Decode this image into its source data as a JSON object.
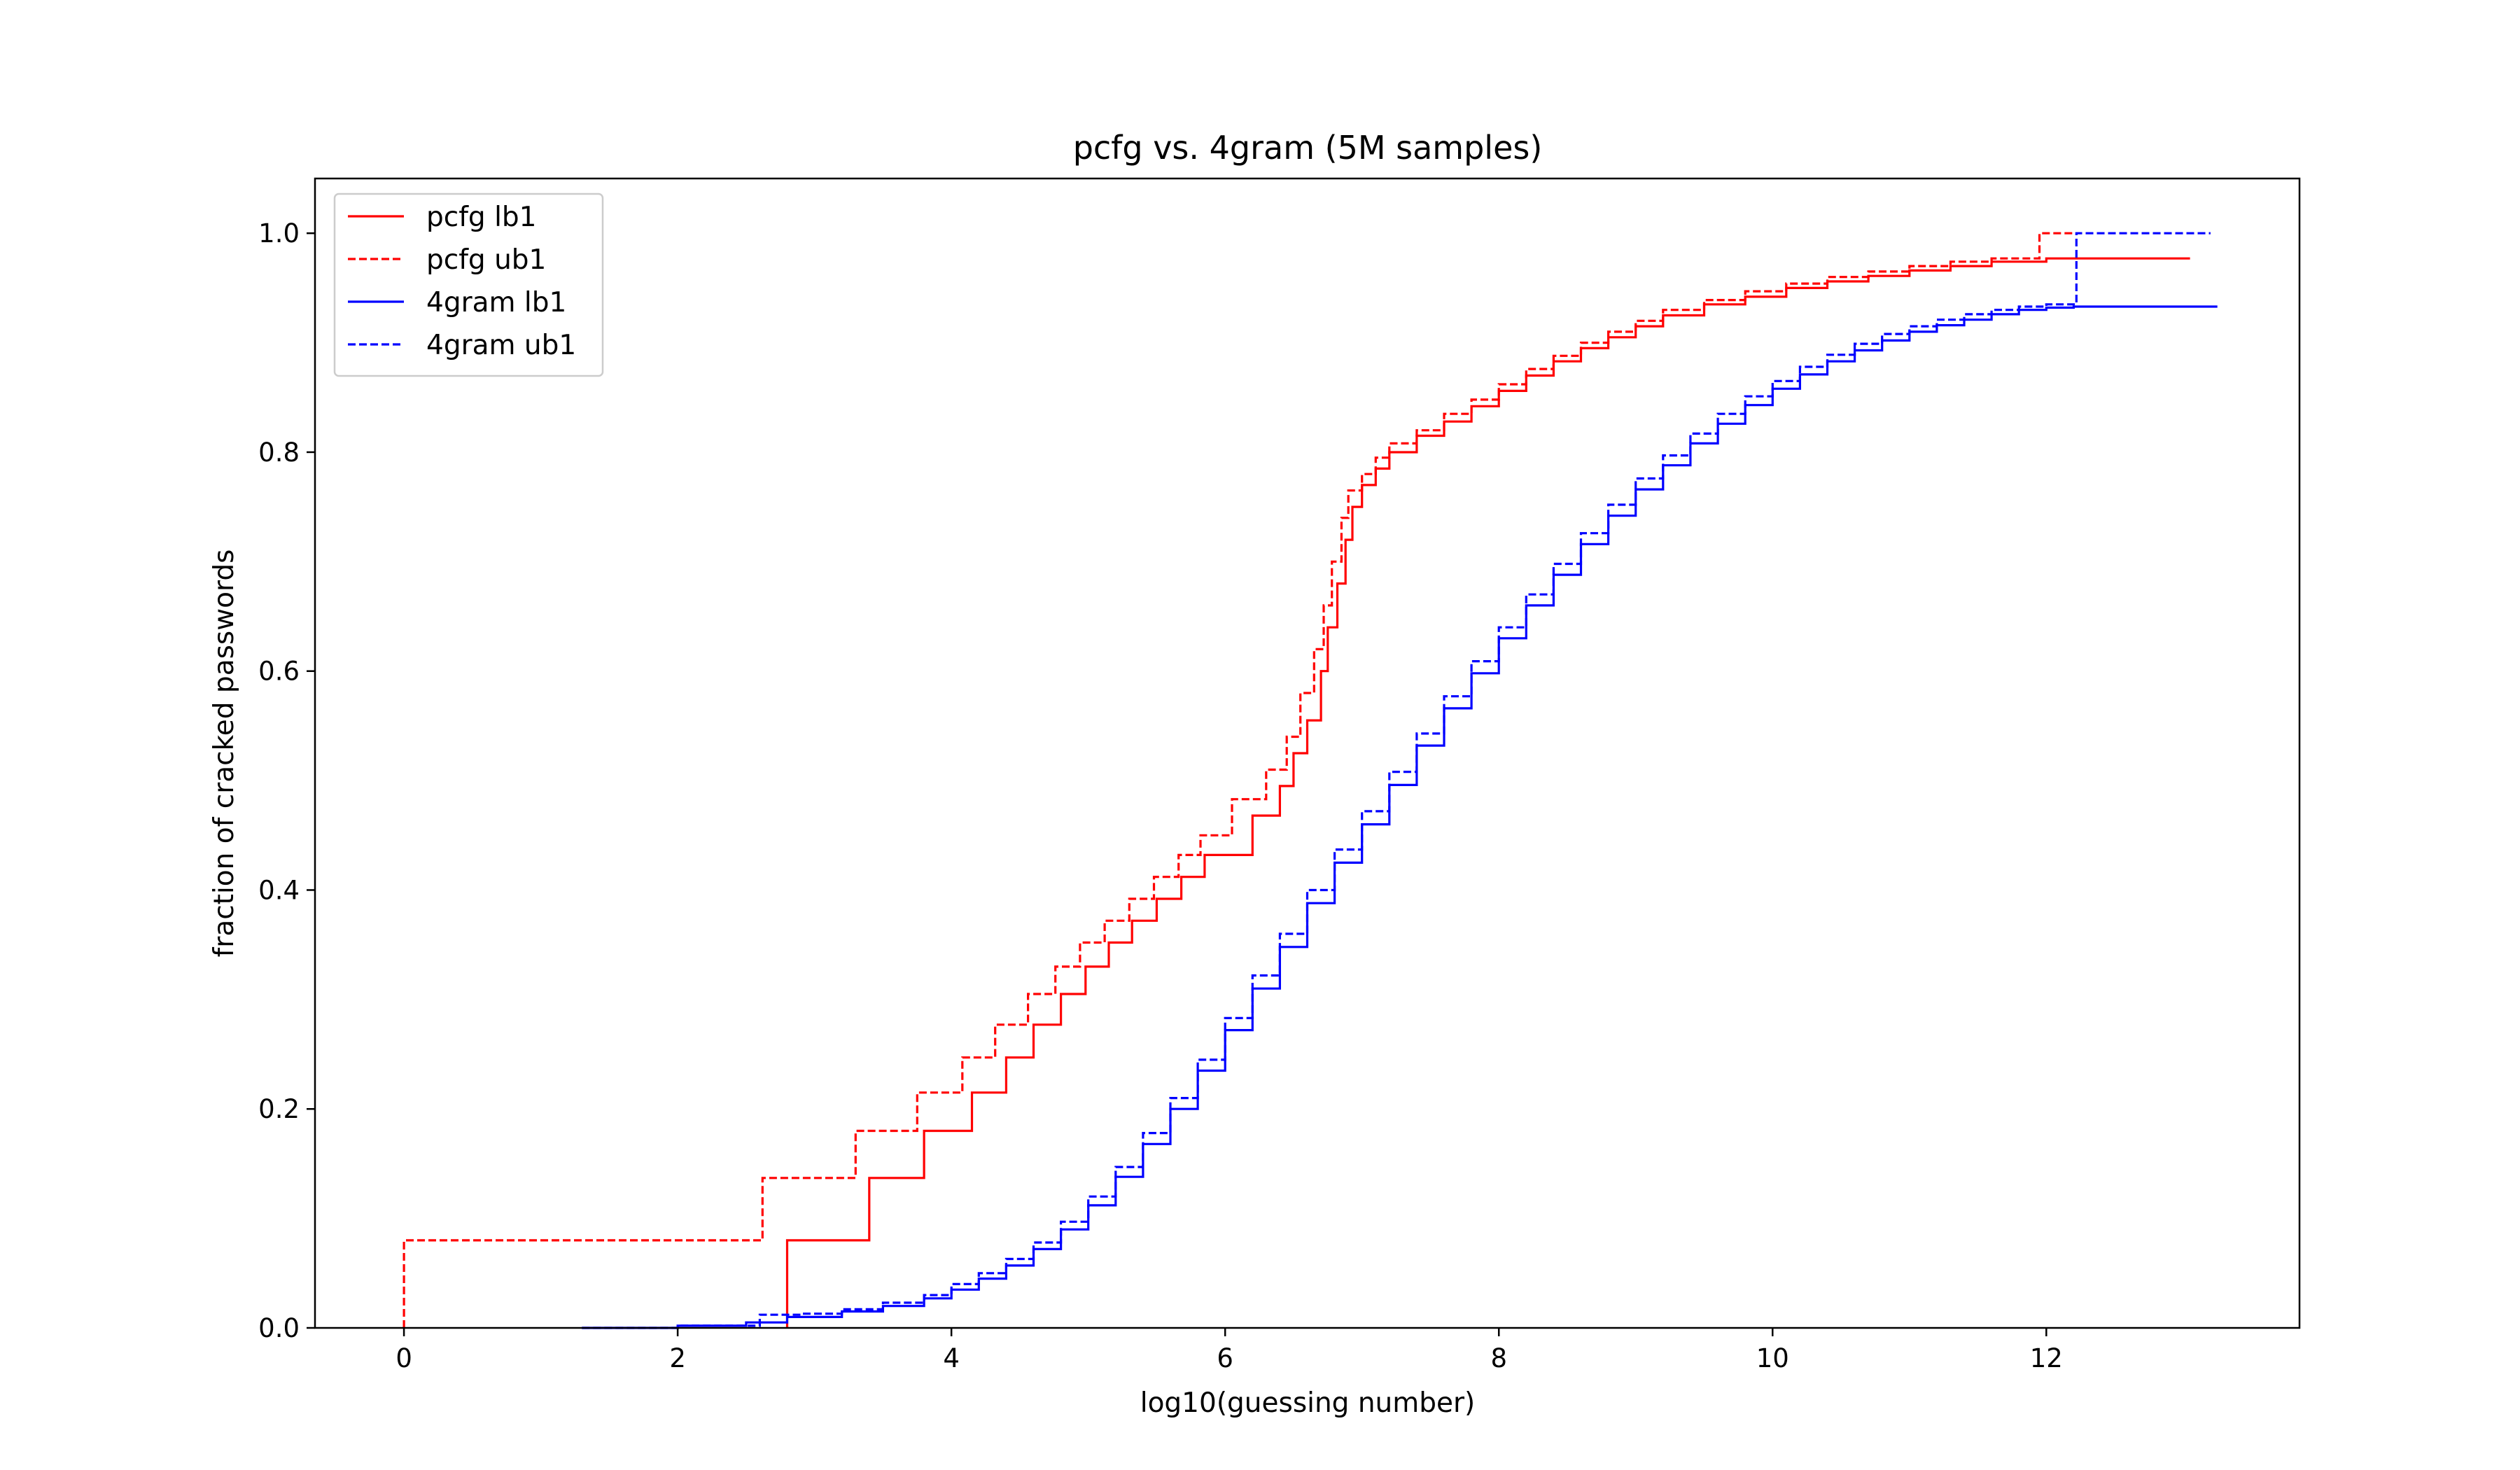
{
  "chart_data": {
    "type": "line",
    "title": "pcfg vs. 4gram (5M samples)",
    "xlabel": "log10(guessing number)",
    "ylabel": "fraction of cracked passwords",
    "xlim": [
      -0.65,
      13.85
    ],
    "ylim": [
      0,
      1.05
    ],
    "x_ticks": [
      0,
      2,
      4,
      6,
      8,
      10,
      12
    ],
    "y_ticks": [
      0.0,
      0.2,
      0.4,
      0.6,
      0.8,
      1.0
    ],
    "x_tick_labels": [
      "0",
      "2",
      "4",
      "6",
      "8",
      "10",
      "12"
    ],
    "y_tick_labels": [
      "0.0",
      "0.2",
      "0.4",
      "0.6",
      "0.8",
      "1.0"
    ],
    "grid": false,
    "legend_position": "top-left",
    "series": [
      {
        "name": "pcfg lb1",
        "color": "#ff0000",
        "style": "solid",
        "step": true,
        "x": [
          2.8,
          3.4,
          3.8,
          4.15,
          4.4,
          4.6,
          4.8,
          4.98,
          5.15,
          5.32,
          5.5,
          5.68,
          5.85,
          6.2,
          6.4,
          6.5,
          6.6,
          6.7,
          6.75,
          6.82,
          6.88,
          6.93,
          7.0,
          7.1,
          7.2,
          7.4,
          7.6,
          7.8,
          8.0,
          8.2,
          8.4,
          8.6,
          8.8,
          9.0,
          9.2,
          9.5,
          9.8,
          10.1,
          10.4,
          10.7,
          11.0,
          11.3,
          11.6,
          12.0,
          13.05
        ],
        "y": [
          0.08,
          0.137,
          0.18,
          0.215,
          0.247,
          0.277,
          0.305,
          0.33,
          0.352,
          0.372,
          0.392,
          0.412,
          0.432,
          0.468,
          0.495,
          0.525,
          0.555,
          0.6,
          0.64,
          0.68,
          0.72,
          0.75,
          0.77,
          0.785,
          0.8,
          0.815,
          0.828,
          0.842,
          0.856,
          0.87,
          0.883,
          0.895,
          0.905,
          0.915,
          0.925,
          0.935,
          0.942,
          0.95,
          0.956,
          0.961,
          0.966,
          0.97,
          0.974,
          0.977,
          0.977
        ]
      },
      {
        "name": "pcfg ub1",
        "color": "#ff0000",
        "style": "dashed",
        "step": true,
        "x": [
          0.0,
          2.62,
          3.3,
          3.75,
          4.08,
          4.32,
          4.56,
          4.76,
          4.94,
          5.12,
          5.3,
          5.48,
          5.66,
          5.82,
          6.05,
          6.3,
          6.45,
          6.55,
          6.65,
          6.72,
          6.78,
          6.85,
          6.9,
          7.0,
          7.1,
          7.2,
          7.4,
          7.6,
          7.8,
          8.0,
          8.2,
          8.4,
          8.6,
          8.8,
          9.0,
          9.2,
          9.5,
          9.8,
          10.1,
          10.4,
          10.7,
          11.0,
          11.3,
          11.6,
          11.95,
          12.1,
          12.2
        ],
        "y": [
          0.08,
          0.137,
          0.18,
          0.215,
          0.247,
          0.277,
          0.305,
          0.33,
          0.352,
          0.372,
          0.392,
          0.412,
          0.432,
          0.45,
          0.483,
          0.51,
          0.54,
          0.58,
          0.62,
          0.66,
          0.7,
          0.74,
          0.765,
          0.78,
          0.795,
          0.808,
          0.82,
          0.835,
          0.848,
          0.862,
          0.876,
          0.888,
          0.9,
          0.91,
          0.92,
          0.93,
          0.939,
          0.947,
          0.954,
          0.96,
          0.965,
          0.97,
          0.974,
          0.977,
          1.0,
          1.0,
          1.0
        ]
      },
      {
        "name": "4gram lb1",
        "color": "#0000ff",
        "style": "solid",
        "step": true,
        "x": [
          1.3,
          2.0,
          2.5,
          2.8,
          3.2,
          3.5,
          3.8,
          4.0,
          4.2,
          4.4,
          4.6,
          4.8,
          5.0,
          5.2,
          5.4,
          5.6,
          5.8,
          6.0,
          6.2,
          6.4,
          6.6,
          6.8,
          7.0,
          7.2,
          7.4,
          7.6,
          7.8,
          8.0,
          8.2,
          8.4,
          8.6,
          8.8,
          9.0,
          9.2,
          9.4,
          9.6,
          9.8,
          10.0,
          10.2,
          10.4,
          10.6,
          10.8,
          11.0,
          11.2,
          11.4,
          11.6,
          11.8,
          12.0,
          12.2,
          13.25
        ],
        "y": [
          0.0,
          0.002,
          0.005,
          0.01,
          0.015,
          0.02,
          0.027,
          0.035,
          0.045,
          0.057,
          0.072,
          0.09,
          0.112,
          0.138,
          0.168,
          0.2,
          0.235,
          0.272,
          0.31,
          0.348,
          0.388,
          0.425,
          0.46,
          0.496,
          0.532,
          0.566,
          0.598,
          0.63,
          0.66,
          0.688,
          0.716,
          0.742,
          0.766,
          0.788,
          0.808,
          0.826,
          0.843,
          0.858,
          0.871,
          0.883,
          0.893,
          0.902,
          0.91,
          0.916,
          0.921,
          0.926,
          0.93,
          0.932,
          0.933,
          0.933
        ]
      },
      {
        "name": "4gram ub1",
        "color": "#0000ff",
        "style": "dashed",
        "step": true,
        "x": [
          1.3,
          2.0,
          2.6,
          2.9,
          3.2,
          3.5,
          3.8,
          4.0,
          4.2,
          4.4,
          4.6,
          4.8,
          5.0,
          5.2,
          5.4,
          5.6,
          5.8,
          6.0,
          6.2,
          6.4,
          6.6,
          6.8,
          7.0,
          7.2,
          7.4,
          7.6,
          7.8,
          8.0,
          8.2,
          8.4,
          8.6,
          8.8,
          9.0,
          9.2,
          9.4,
          9.6,
          9.8,
          10.0,
          10.2,
          10.4,
          10.6,
          10.8,
          11.0,
          11.2,
          11.4,
          11.6,
          11.8,
          12.0,
          12.22,
          13.2
        ],
        "y": [
          0.0,
          0.002,
          0.012,
          0.013,
          0.017,
          0.023,
          0.03,
          0.04,
          0.05,
          0.063,
          0.078,
          0.097,
          0.12,
          0.147,
          0.178,
          0.21,
          0.245,
          0.283,
          0.322,
          0.36,
          0.4,
          0.437,
          0.472,
          0.508,
          0.543,
          0.577,
          0.609,
          0.64,
          0.67,
          0.698,
          0.726,
          0.752,
          0.776,
          0.797,
          0.817,
          0.835,
          0.851,
          0.865,
          0.878,
          0.889,
          0.899,
          0.908,
          0.915,
          0.921,
          0.926,
          0.93,
          0.933,
          0.935,
          1.0,
          1.0
        ]
      }
    ]
  }
}
